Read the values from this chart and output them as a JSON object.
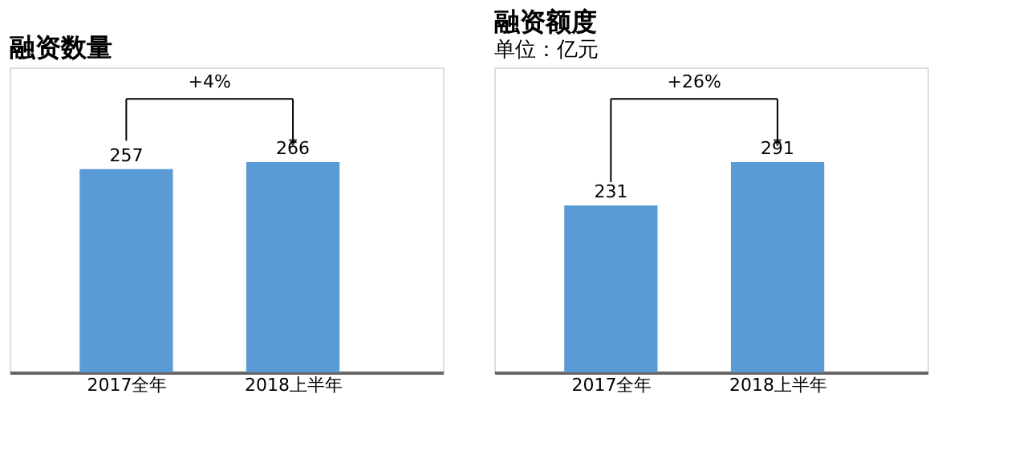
{
  "chart_data": [
    {
      "type": "bar",
      "title": "融资数量",
      "categories": [
        "2017全年",
        "2018上半年"
      ],
      "values": [
        257,
        266
      ],
      "color": "#5b9bd5",
      "data_labels": true,
      "annotations": [
        "+4%"
      ]
    },
    {
      "type": "bar",
      "title": "融资额度",
      "subtitle": "单位：亿元",
      "categories": [
        "2017全年",
        "2018上半年"
      ],
      "values": [
        231,
        291
      ],
      "color": "#5b9bd5",
      "data_labels": true,
      "annotations": [
        "+26%"
      ]
    }
  ]
}
